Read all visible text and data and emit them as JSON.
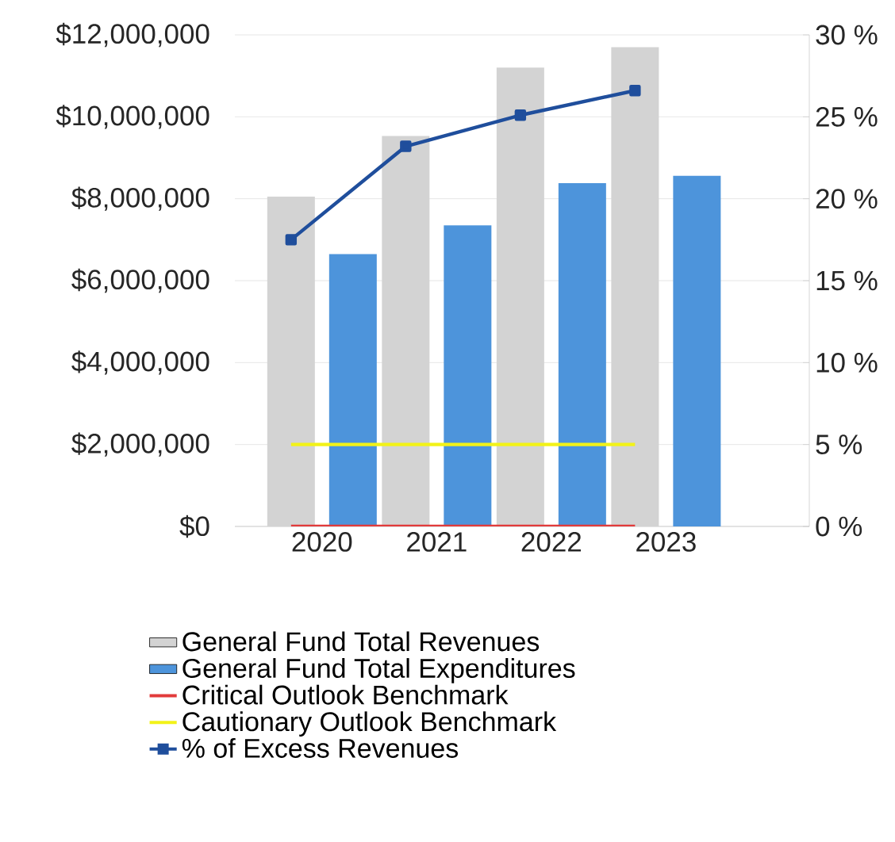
{
  "chart_data": {
    "type": "bar",
    "categories": [
      "2020",
      "2021",
      "2022",
      "2023"
    ],
    "series": [
      {
        "name": "General Fund Total Revenues",
        "color": "#d3d3d3",
        "values": [
          8050000,
          9530000,
          11200000,
          11700000
        ]
      },
      {
        "name": "General Fund Total Expenditures",
        "color": "#4d94db",
        "values": [
          6650000,
          7350000,
          8380000,
          8560000
        ]
      },
      {
        "name": "Critical Outlook Benchmark",
        "type": "line",
        "axis": "y2",
        "color": "#e23b3b",
        "values": [
          0,
          0,
          0,
          0
        ]
      },
      {
        "name": "Cautionary Outlook Benchmark",
        "type": "line",
        "axis": "y2",
        "color": "#f2f218",
        "values": [
          5,
          5,
          5,
          5
        ]
      },
      {
        "name": "% of Excess Revenues",
        "type": "line",
        "axis": "y2",
        "color": "#1f4e9c",
        "marker": "square",
        "values": [
          17.5,
          23.2,
          25.1,
          26.6
        ]
      }
    ],
    "ylim": [
      0,
      12000000
    ],
    "yticks": [
      {
        "value": 0,
        "label": "$0"
      },
      {
        "value": 2000000,
        "label": "$2,000,000"
      },
      {
        "value": 4000000,
        "label": "$4,000,000"
      },
      {
        "value": 6000000,
        "label": "$6,000,000"
      },
      {
        "value": 8000000,
        "label": "$8,000,000"
      },
      {
        "value": 10000000,
        "label": "$10,000,000"
      },
      {
        "value": 12000000,
        "label": "$12,000,000"
      }
    ],
    "y2lim": [
      0,
      30
    ],
    "y2ticks": [
      {
        "value": 0,
        "label": "0 %"
      },
      {
        "value": 5,
        "label": "5 %"
      },
      {
        "value": 10,
        "label": "10 %"
      },
      {
        "value": 15,
        "label": "15 %"
      },
      {
        "value": 20,
        "label": "20 %"
      },
      {
        "value": 25,
        "label": "25 %"
      },
      {
        "value": 30,
        "label": "30 %"
      }
    ],
    "grid": "y",
    "legend": "bottom"
  }
}
